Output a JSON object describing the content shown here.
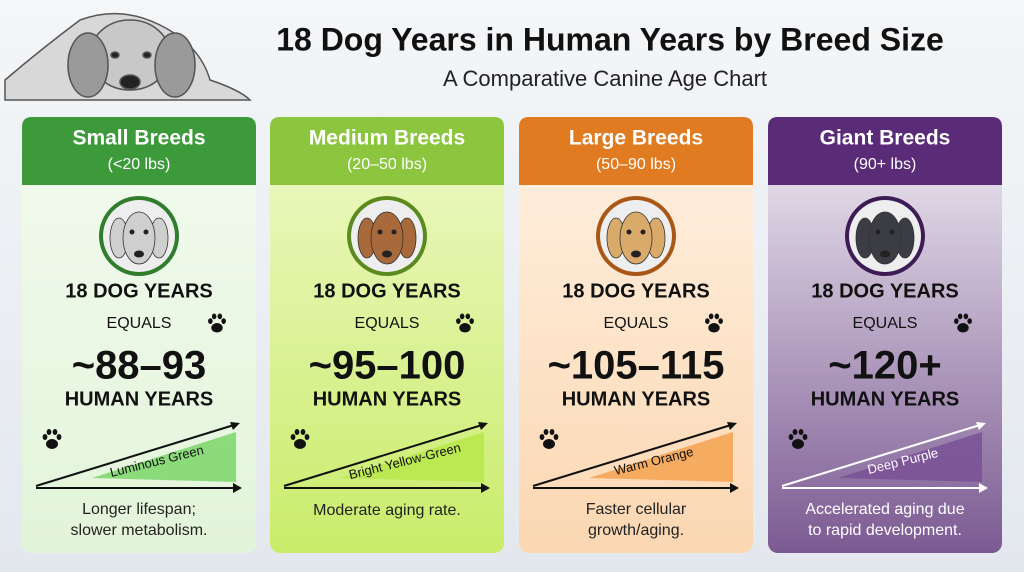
{
  "header": {
    "title": "18 Dog Years in Human Years by Breed Size",
    "subtitle": "A Comparative Canine Age Chart"
  },
  "cards": [
    {
      "name": "Small Breeds",
      "range": "(<20 lbs)",
      "dog_years": "18 DOG YEARS",
      "equals": "EQUALS",
      "human_years": "~88–93",
      "human_label": "HUMAN YEARS",
      "trend_label": "Luminous Green",
      "description": [
        "Longer lifespan;",
        "slower metabolism."
      ]
    },
    {
      "name": "Medium Breeds",
      "range": "(20–50 lbs)",
      "dog_years": "18 DOG YEARS",
      "equals": "EQUALS",
      "human_years": "~95–100",
      "human_label": "HUMAN YEARS",
      "trend_label": "Bright Yellow-Green",
      "description": [
        "Moderate aging rate."
      ]
    },
    {
      "name": "Large Breeds",
      "range": "(50–90 lbs)",
      "dog_years": "18 DOG YEARS",
      "equals": "EQUALS",
      "human_years": "~105–115",
      "human_label": "HUMAN YEARS",
      "trend_label": "Warm Orange",
      "description": [
        "Faster cellular",
        "growth/aging."
      ]
    },
    {
      "name": "Giant Breeds",
      "range": "(90+ lbs)",
      "dog_years": "18 DOG YEARS",
      "equals": "EQUALS",
      "human_years": "~120+",
      "human_label": "HUMAN YEARS",
      "trend_label": "Deep Purple",
      "description": [
        "Accelerated aging due",
        "to rapid development."
      ]
    }
  ]
}
